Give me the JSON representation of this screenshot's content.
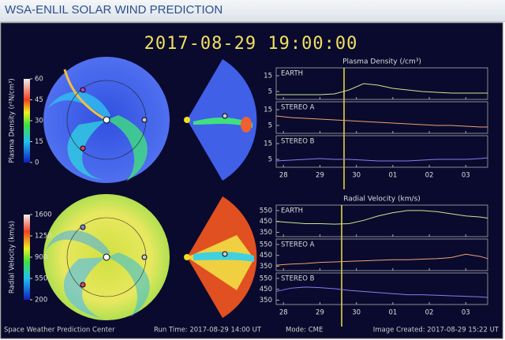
{
  "header": {
    "title": "WSA-ENLIL SOLAR WIND PREDICTION"
  },
  "timestamp": "2017-08-29 19:00:00",
  "colorbars": [
    {
      "label": "Plasma Density (r²N/cm³)",
      "ticks": [
        0,
        15,
        30,
        45,
        60
      ]
    },
    {
      "label": "Radial Velocity (km/s)",
      "ticks": [
        200,
        550,
        900,
        1250,
        1600
      ]
    }
  ],
  "chart_data": [
    {
      "type": "line",
      "title": "Plasma Density (/cm³)",
      "x": [
        -0.2,
        0.2,
        0.6,
        1,
        1.4,
        1.8,
        2.2,
        2.6,
        3,
        3.4,
        3.8,
        4.2,
        4.6,
        5,
        5.4,
        5.6
      ],
      "xlim": [
        -0.2,
        5.6
      ],
      "xticks": [
        {
          "value": 0,
          "label": "28"
        },
        {
          "value": 1,
          "label": "29"
        },
        {
          "value": 2,
          "label": "30"
        },
        {
          "value": 3,
          "label": "01"
        },
        {
          "value": 4,
          "label": "02"
        },
        {
          "value": 5,
          "label": "03"
        }
      ],
      "ylim": [
        0,
        20
      ],
      "yticks": [
        5,
        15
      ],
      "series": [
        {
          "name": "EARTH",
          "color": "#c8e890",
          "values": [
            3,
            3,
            3,
            3,
            3.5,
            6,
            10,
            9,
            7,
            6,
            5,
            4.5,
            4,
            4,
            4,
            4
          ]
        },
        {
          "name": "STEREO A",
          "color": "#f0a070",
          "values": [
            11,
            10,
            9.5,
            9,
            8.5,
            8,
            7.5,
            7,
            6.5,
            6,
            5.5,
            5,
            5,
            4.5,
            4,
            4
          ]
        },
        {
          "name": "STEREO B",
          "color": "#8a7cf0",
          "values": [
            4,
            4.5,
            5,
            5.5,
            5,
            5,
            4.5,
            4,
            4,
            4,
            4.5,
            5,
            5,
            5,
            5.5,
            6
          ]
        }
      ]
    },
    {
      "type": "line",
      "title": "Radial Velocity (km/s)",
      "x": [
        -0.2,
        0.2,
        0.6,
        1,
        1.4,
        1.8,
        2.2,
        2.6,
        3,
        3.4,
        3.8,
        4.2,
        4.6,
        5,
        5.4,
        5.6
      ],
      "xlim": [
        -0.2,
        5.6
      ],
      "xticks": [
        {
          "value": 0,
          "label": "28"
        },
        {
          "value": 1,
          "label": "29"
        },
        {
          "value": 2,
          "label": "30"
        },
        {
          "value": 3,
          "label": "01"
        },
        {
          "value": 4,
          "label": "02"
        },
        {
          "value": 5,
          "label": "03"
        }
      ],
      "ylim": [
        310,
        600
      ],
      "yticks": [
        350,
        450,
        550
      ],
      "series": [
        {
          "name": "EARTH",
          "color": "#c8e890",
          "values": [
            450,
            440,
            430,
            430,
            425,
            430,
            460,
            500,
            530,
            550,
            550,
            540,
            520,
            500,
            490,
            480
          ]
        },
        {
          "name": "STEREO A",
          "color": "#f0a070",
          "values": [
            360,
            370,
            375,
            385,
            390,
            395,
            400,
            405,
            410,
            410,
            415,
            420,
            430,
            460,
            440,
            420
          ]
        },
        {
          "name": "STEREO B",
          "color": "#8a7cf0",
          "values": [
            430,
            460,
            470,
            465,
            455,
            440,
            430,
            420,
            410,
            400,
            400,
            395,
            390,
            385,
            380,
            375
          ]
        }
      ]
    }
  ],
  "footer": {
    "left": "Space Weather Prediction Center",
    "run": "Run Time: 2017-08-29 14:00 UT",
    "mode": "Mode: CME",
    "created": "Image Created: 2017-08-29 15:22 UT"
  }
}
